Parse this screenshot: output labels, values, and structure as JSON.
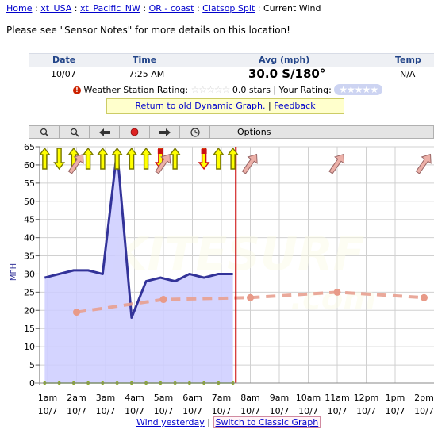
{
  "breadcrumb": [
    "Home",
    "xt_USA",
    "xt_Pacific_NW",
    "OR - coast",
    "Clatsop Spit",
    "Current Wind"
  ],
  "notice": "Please see \"Sensor Notes\" for more details on this location!",
  "info": {
    "headers": {
      "date": "Date",
      "time": "Time",
      "avg": "Avg (mph)",
      "temp": "Temp"
    },
    "values": {
      "date": "10/07",
      "time": "7:25 AM",
      "avg": "30.0 S/180°",
      "temp": "N/A"
    }
  },
  "rating": {
    "label": "Weather Station Rating:",
    "stars_text": "0.0 stars | Your Rating:"
  },
  "banner": {
    "return_link": "Return to old Dynamic Graph.",
    "sep": "|",
    "feedback": "Feedback"
  },
  "toolbar": {
    "options": "Options",
    "zoom_in_icon": "magnify-plus-icon",
    "zoom_out_icon": "magnify-minus-icon",
    "back_icon": "arrow-left-icon",
    "stop_icon": "record-icon",
    "forward_icon": "arrow-right-icon",
    "clock_icon": "clock-icon"
  },
  "footer": {
    "yesterday": "Wind yesterday",
    "sep": "|",
    "classic": "Switch to Classic Graph"
  },
  "colors": {
    "link": "#0000cc",
    "area": "#ccccff",
    "line": "#333399",
    "forecast": "#e8a090",
    "now": "#cc0000",
    "gust_arrow": "#ffff00"
  },
  "chart_data": {
    "type": "line",
    "ylabel": "MPH",
    "ylim": [
      0,
      65
    ],
    "yticks": [
      0,
      5,
      10,
      15,
      20,
      25,
      30,
      35,
      40,
      45,
      50,
      55,
      60,
      65
    ],
    "xticks": [
      {
        "time": "1am",
        "date": "10/7"
      },
      {
        "time": "2am",
        "date": "10/7"
      },
      {
        "time": "3am",
        "date": "10/7"
      },
      {
        "time": "4am",
        "date": "10/7"
      },
      {
        "time": "5am",
        "date": "10/7"
      },
      {
        "time": "6am",
        "date": "10/7"
      },
      {
        "time": "7am",
        "date": "10/7"
      },
      {
        "time": "8am",
        "date": "10/7"
      },
      {
        "time": "9am",
        "date": "10/7"
      },
      {
        "time": "10am",
        "date": "10/7"
      },
      {
        "time": "11am",
        "date": "10/7"
      },
      {
        "time": "12pm",
        "date": "10/7"
      },
      {
        "time": "1pm",
        "date": "10/7"
      },
      {
        "time": "2pm",
        "date": "10/7"
      }
    ],
    "x_hours": [
      1,
      2,
      3,
      4,
      5,
      6,
      7,
      8,
      9,
      10,
      11,
      12,
      13,
      14
    ],
    "now_hour": 7.5,
    "series": [
      {
        "kind": "average",
        "x": [
          0.9,
          1.4,
          1.9,
          2.4,
          2.9,
          3.4,
          3.9,
          4.4,
          4.9,
          5.4,
          5.9,
          6.4,
          6.9,
          7.4
        ],
        "values": [
          29,
          30,
          31,
          31,
          30,
          64,
          18,
          28,
          29,
          28,
          30,
          29,
          30,
          30
        ]
      },
      {
        "kind": "lull",
        "x": [
          0.9,
          1.4,
          1.9,
          2.4,
          2.9,
          3.4,
          3.9,
          4.4,
          4.9,
          5.4,
          5.9,
          6.4,
          6.9,
          7.4
        ],
        "values": [
          0,
          0,
          0,
          0,
          0,
          0,
          0,
          0,
          0,
          0,
          0,
          0,
          0,
          0
        ]
      },
      {
        "kind": "forecast",
        "x": [
          2,
          5,
          8,
          11,
          14
        ],
        "values": [
          19.5,
          23,
          23.5,
          25,
          23.5
        ]
      }
    ],
    "gust_arrows": [
      {
        "hour": 0.9,
        "dir": "up",
        "color": "yellow"
      },
      {
        "hour": 1.4,
        "dir": "down",
        "color": "yellow"
      },
      {
        "hour": 1.9,
        "dir": "up",
        "color": "yellow"
      },
      {
        "hour": 2.4,
        "dir": "up",
        "color": "yellow"
      },
      {
        "hour": 2.9,
        "dir": "up",
        "color": "yellow"
      },
      {
        "hour": 3.4,
        "dir": "up",
        "color": "yellow"
      },
      {
        "hour": 3.9,
        "dir": "up",
        "color": "yellow"
      },
      {
        "hour": 4.4,
        "dir": "up",
        "color": "yellow"
      },
      {
        "hour": 4.9,
        "dir": "down",
        "color": "red"
      },
      {
        "hour": 5.4,
        "dir": "up",
        "color": "yellow"
      },
      {
        "hour": 6.4,
        "dir": "down",
        "color": "red"
      },
      {
        "hour": 6.9,
        "dir": "up",
        "color": "yellow"
      },
      {
        "hour": 7.4,
        "dir": "up",
        "color": "yellow"
      }
    ],
    "forecast_arrows": [
      {
        "hour": 2
      },
      {
        "hour": 5
      },
      {
        "hour": 8
      },
      {
        "hour": 11
      },
      {
        "hour": 14
      }
    ]
  }
}
